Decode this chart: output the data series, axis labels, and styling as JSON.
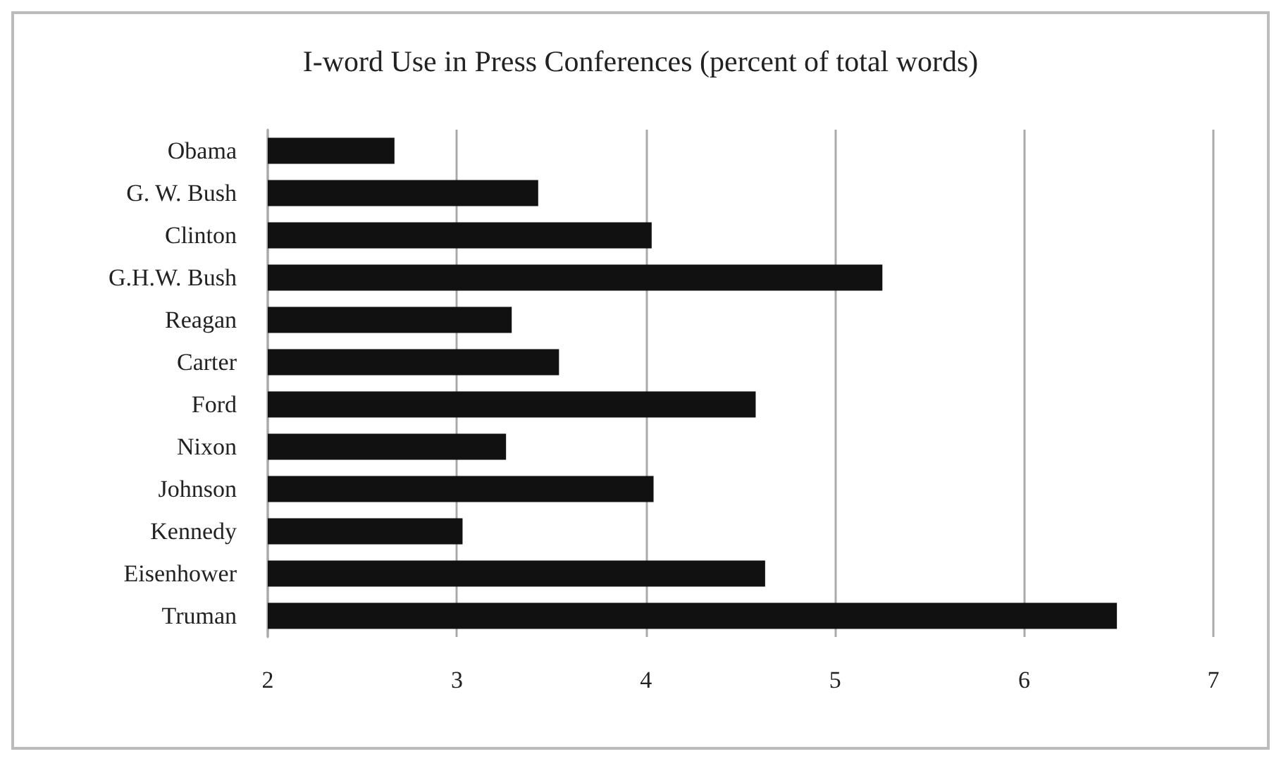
{
  "chart_data": {
    "type": "bar",
    "orientation": "horizontal",
    "title": "I-word Use in Press Conferences (percent of total words)",
    "categories": [
      "Obama",
      "G. W. Bush",
      "Clinton",
      "G.H.W. Bush",
      "Reagan",
      "Carter",
      "Ford",
      "Nixon",
      "Johnson",
      "Kennedy",
      "Eisenhower",
      "Truman"
    ],
    "values": [
      2.67,
      3.43,
      4.03,
      5.25,
      3.29,
      3.54,
      4.58,
      3.26,
      4.04,
      3.03,
      4.63,
      6.49
    ],
    "color": "#111111",
    "xlim": [
      2,
      7
    ],
    "xticks": [
      2,
      3,
      4,
      5,
      6,
      7
    ],
    "grid": "x"
  }
}
